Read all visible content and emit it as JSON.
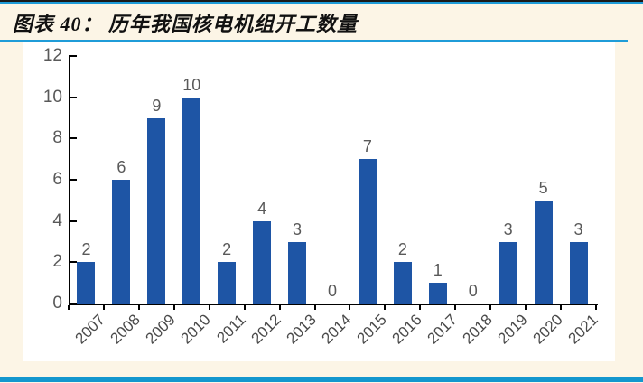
{
  "page": {
    "title": "图表 40：  历年我国核电机组开工数量"
  },
  "colors": {
    "background": "#fcf5e6",
    "panel": "#ffffff",
    "bar": "#1e55a5",
    "accent_blue_line": "#1f9cd8",
    "bottom_rule": "#1497ce",
    "axis": "#000000",
    "tick_label": "#595959",
    "year_label": "#4a4a4a",
    "top_rule": "#1a1a1a"
  },
  "chart_data": {
    "type": "bar",
    "title": "历年我国核电机组开工数量",
    "categories": [
      "2007",
      "2008",
      "2009",
      "2010",
      "2011",
      "2012",
      "2013",
      "2014",
      "2015",
      "2016",
      "2017",
      "2018",
      "2019",
      "2020",
      "2021"
    ],
    "values": [
      2,
      6,
      9,
      10,
      2,
      4,
      3,
      0,
      7,
      2,
      1,
      0,
      3,
      5,
      3
    ],
    "xlabel": "",
    "ylabel": "",
    "ylim": [
      0,
      12
    ],
    "yticks": [
      0,
      2,
      4,
      6,
      8,
      10,
      12
    ],
    "grid": false,
    "legend_position": "none",
    "data_labels": true,
    "bar_color": "#1e55a5"
  }
}
